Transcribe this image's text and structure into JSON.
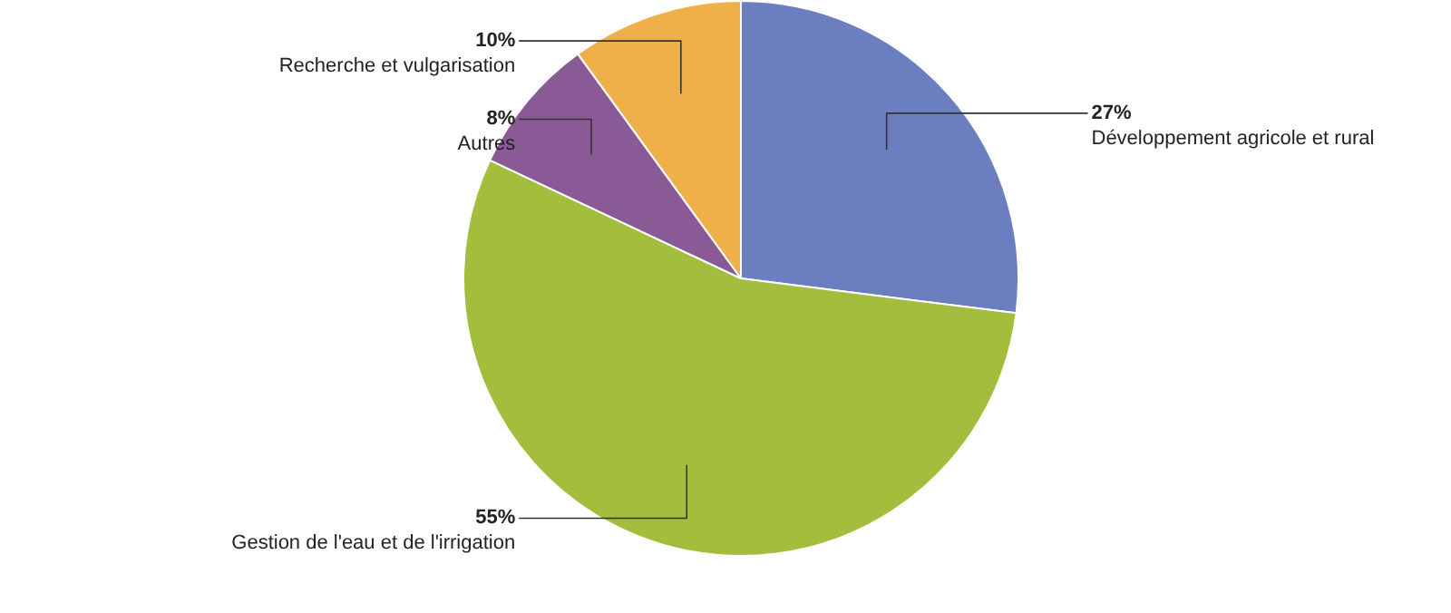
{
  "chart_data": {
    "type": "pie",
    "categories": [
      "Développement agricole et rural",
      "Gestion de l'eau et de l'irrigation",
      "Autres",
      "Recherche et vulgarisation"
    ],
    "values": [
      27,
      55,
      8,
      10
    ],
    "colors": [
      "#6b7fc0",
      "#a3be3c",
      "#8a5a96",
      "#efb04a"
    ],
    "value_labels": [
      "27%",
      "55%",
      "8%",
      "10%"
    ]
  }
}
